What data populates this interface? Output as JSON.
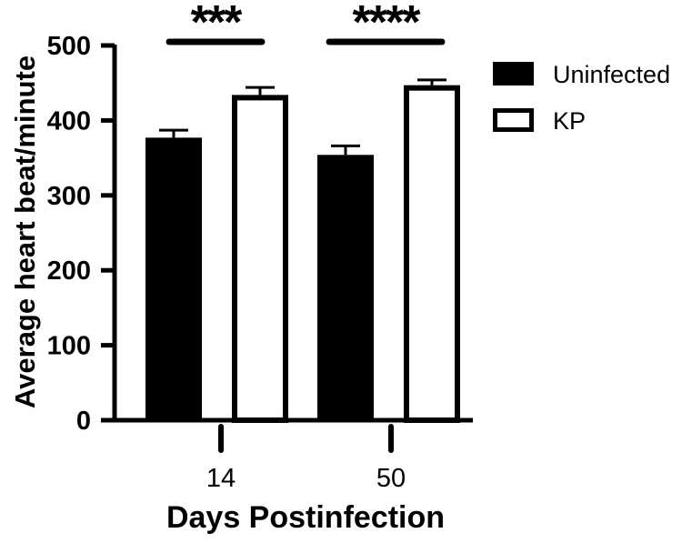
{
  "chart_data": {
    "type": "bar",
    "title": "",
    "xlabel": "Days Postinfection",
    "ylabel": "Average heart beat/minute",
    "categories": [
      "14",
      "50"
    ],
    "ylim": [
      0,
      500
    ],
    "yticks": [
      0,
      100,
      200,
      300,
      400,
      500
    ],
    "grid": false,
    "legend_position": "right",
    "series": [
      {
        "name": "Uninfected",
        "fill": "#000000",
        "values": [
          377,
          354
        ],
        "error": [
          10,
          12
        ]
      },
      {
        "name": "KP",
        "fill": "#ffffff",
        "values": [
          434,
          447
        ],
        "error": [
          10,
          7
        ]
      }
    ],
    "annotations": [
      {
        "category": "14",
        "text": "***"
      },
      {
        "category": "50",
        "text": "****"
      }
    ]
  }
}
